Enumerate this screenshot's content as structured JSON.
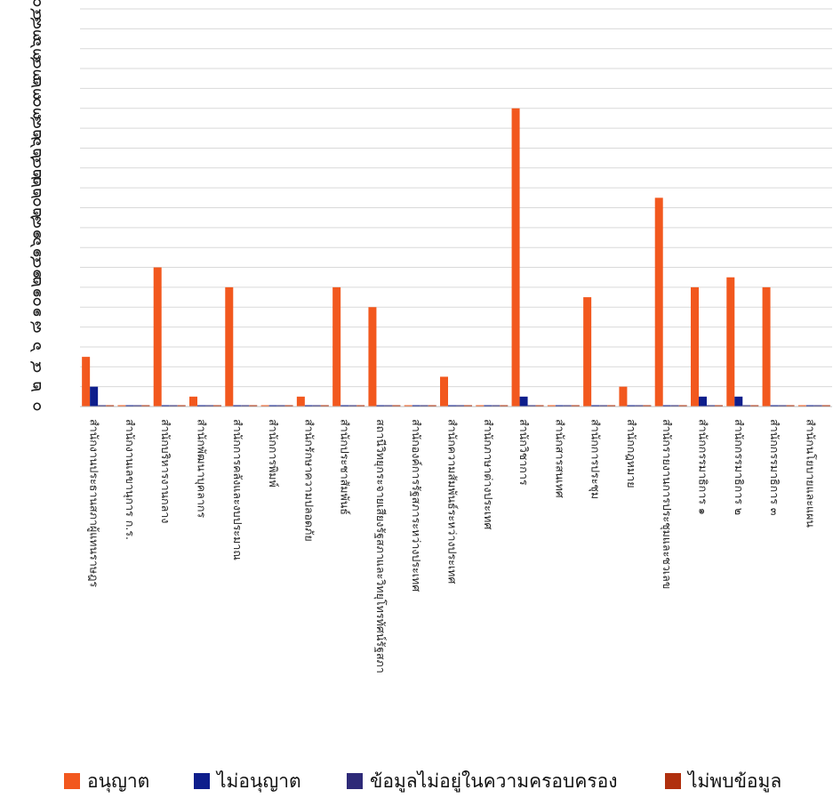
{
  "chart_data": {
    "type": "bar",
    "grid": true,
    "legend_position": "bottom",
    "ylim": [
      0,
      40
    ],
    "y_ticks": [
      "๐",
      "๒",
      "๔",
      "๖",
      "๘",
      "๑๐",
      "๑๒",
      "๑๔",
      "๑๖",
      "๑๘",
      "๒๐",
      "๒๒",
      "๒๔",
      "๒๖",
      "๒๘",
      "๓๐",
      "๓๒",
      "๓๔",
      "๓๖",
      "๓๘",
      "๔๐"
    ],
    "categories": [
      "สำนักงานประธานสภาผู้แทนราษฎร",
      "สำนักงานเลขานุการ ก.ร.",
      "สำนักบริหารงานกลาง",
      "สำนักพัฒนาบุคลากร",
      "สำนักการคลังและงบประมาณ",
      "สำนักการพิมพ์",
      "สำนักรักษาความปลอดภัย",
      "สำนักประชาสัมพันธ์",
      "สถานีวิทยุกระจายเสียงรัฐสภาและวิทยุโทรทัศน์รัฐสภา",
      "สำนักองค์การรัฐสภาระหว่างประเทศ",
      "สำนักความสัมพันธ์ระหว่างประเทศ",
      "สำนักภาษาต่างประเทศ",
      "สำนักวิชาการ",
      "สำนักสารสนเทศ",
      "สำนักการประชุม",
      "สำนักกฎหมาย",
      "สำนักรายงานการประชุมและชวเลข",
      "สำนักกรรมาธิการ ๑",
      "สำนักกรรมาธิการ ๒",
      "สำนักกรรมาธิการ ๓",
      "สำนักนโยบายและแผน"
    ],
    "series": [
      {
        "name": "อนุญาต",
        "color": "#F2581E",
        "values": [
          5,
          0,
          14,
          1,
          12,
          0,
          1,
          12,
          10,
          0,
          3,
          0,
          30,
          0,
          11,
          2,
          21,
          12,
          13,
          12,
          0
        ]
      },
      {
        "name": "ไม่อนุญาต",
        "color": "#0E1E8C",
        "values": [
          2,
          0,
          0,
          0,
          0,
          0,
          0,
          0,
          0,
          0,
          0,
          0,
          1,
          0,
          0,
          0,
          0,
          1,
          1,
          0,
          0
        ]
      },
      {
        "name": "ข้อมูลไม่อยู่ในความครอบครอง",
        "color": "#2E2A78",
        "values": [
          0,
          0,
          0,
          0,
          0,
          0,
          0,
          0,
          0,
          0,
          0,
          0,
          0,
          0,
          0,
          0,
          0,
          0,
          0,
          0,
          0
        ]
      },
      {
        "name": "ไม่พบข้อมูล",
        "color": "#B0300E",
        "values": [
          0,
          0,
          0,
          0,
          0,
          0,
          0,
          0,
          0,
          0,
          0,
          0,
          0,
          0,
          0,
          0,
          0,
          0,
          0,
          0,
          0
        ]
      }
    ]
  }
}
